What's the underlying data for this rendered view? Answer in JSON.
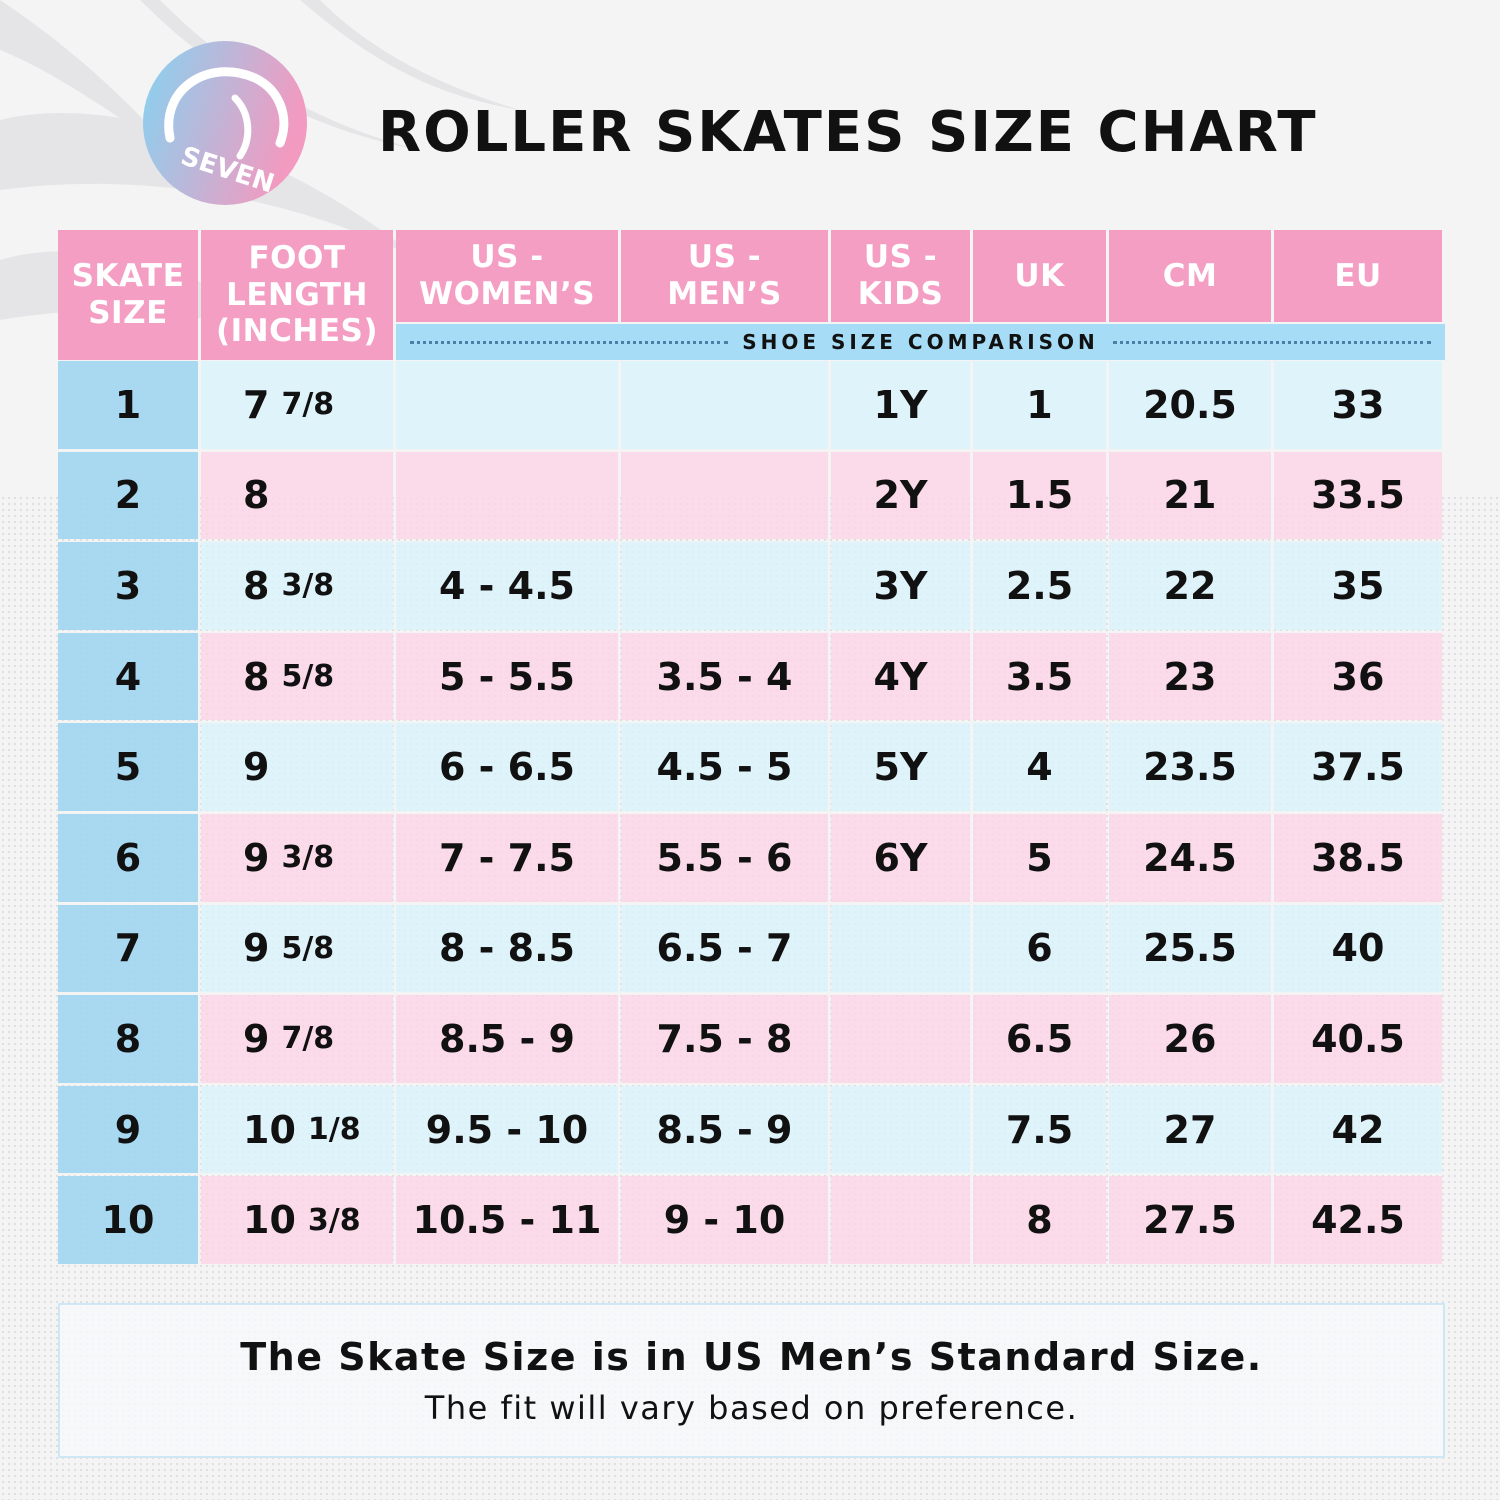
{
  "brand": {
    "logo_text": "SEVEN"
  },
  "title": "ROLLER SKATES SIZE CHART",
  "table": {
    "headers": [
      [
        "SKATE",
        "SIZE"
      ],
      [
        "FOOT",
        "LENGTH",
        "(INCHES)"
      ],
      [
        "US -",
        "WOMEN’S"
      ],
      [
        "US -",
        "MEN’S"
      ],
      [
        "US -",
        "KIDS"
      ],
      [
        "UK"
      ],
      [
        "CM"
      ],
      [
        "EU"
      ]
    ],
    "comparison_label": "SHOE SIZE COMPARISON",
    "rows": [
      {
        "skate": "1",
        "inch": "7",
        "frac": "7/8",
        "women": "",
        "men": "",
        "kids": "1Y",
        "uk": "1",
        "cm": "20.5",
        "eu": "33"
      },
      {
        "skate": "2",
        "inch": "8",
        "frac": "",
        "women": "",
        "men": "",
        "kids": "2Y",
        "uk": "1.5",
        "cm": "21",
        "eu": "33.5"
      },
      {
        "skate": "3",
        "inch": "8",
        "frac": "3/8",
        "women": "4 - 4.5",
        "men": "",
        "kids": "3Y",
        "uk": "2.5",
        "cm": "22",
        "eu": "35"
      },
      {
        "skate": "4",
        "inch": "8",
        "frac": "5/8",
        "women": "5 - 5.5",
        "men": "3.5 - 4",
        "kids": "4Y",
        "uk": "3.5",
        "cm": "23",
        "eu": "36"
      },
      {
        "skate": "5",
        "inch": "9",
        "frac": "",
        "women": "6 - 6.5",
        "men": "4.5 - 5",
        "kids": "5Y",
        "uk": "4",
        "cm": "23.5",
        "eu": "37.5"
      },
      {
        "skate": "6",
        "inch": "9",
        "frac": "3/8",
        "women": "7 - 7.5",
        "men": "5.5 - 6",
        "kids": "6Y",
        "uk": "5",
        "cm": "24.5",
        "eu": "38.5"
      },
      {
        "skate": "7",
        "inch": "9",
        "frac": "5/8",
        "women": "8 - 8.5",
        "men": "6.5 - 7",
        "kids": "",
        "uk": "6",
        "cm": "25.5",
        "eu": "40"
      },
      {
        "skate": "8",
        "inch": "9",
        "frac": "7/8",
        "women": "8.5 - 9",
        "men": "7.5 - 8",
        "kids": "",
        "uk": "6.5",
        "cm": "26",
        "eu": "40.5"
      },
      {
        "skate": "9",
        "inch": "10",
        "frac": "1/8",
        "women": "9.5 - 10",
        "men": "8.5 - 9",
        "kids": "",
        "uk": "7.5",
        "cm": "27",
        "eu": "42"
      },
      {
        "skate": "10",
        "inch": "10",
        "frac": "3/8",
        "women": "10.5 - 11",
        "men": "9 - 10",
        "kids": "",
        "uk": "8",
        "cm": "27.5",
        "eu": "42.5"
      }
    ]
  },
  "note": {
    "line1": "The Skate Size is in US Men’s Standard Size.",
    "line2": "The fit will vary based on preference."
  },
  "colors": {
    "header_pink": "#f49ec4",
    "band_blue": "#a6dcf5",
    "row_blue": "#daf2fb",
    "row_pink": "#fcd5e7",
    "size_col_blue": "#a0d6f0",
    "logo_gradient_start": "#86d3f1",
    "logo_gradient_end": "#f29ac0"
  }
}
